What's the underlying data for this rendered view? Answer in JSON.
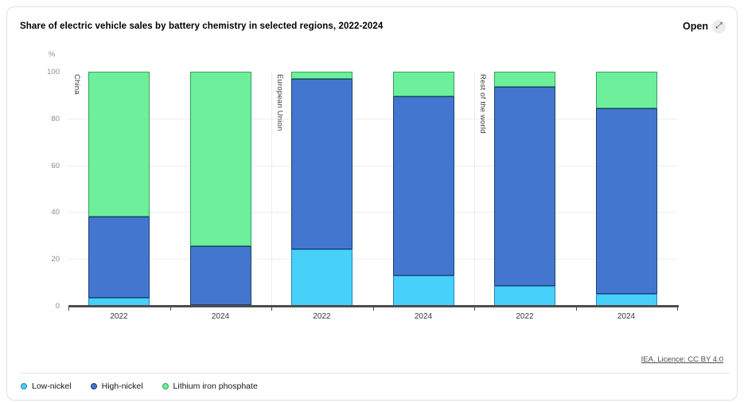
{
  "header": {
    "title": "Share of electric vehicle sales by battery chemistry in selected regions, 2022-2024",
    "open_label": "Open",
    "open_icon": "⤢"
  },
  "chart_data": {
    "type": "bar",
    "stacked": true,
    "title": "Share of electric vehicle sales by battery chemistry in selected regions, 2022-2024",
    "xlabel": "",
    "ylabel": "%",
    "ylim": [
      0,
      100
    ],
    "yticks": [
      0,
      20,
      40,
      60,
      80,
      100
    ],
    "gridline_values": [
      20,
      40,
      60,
      80
    ],
    "grid": true,
    "legend_position": "bottom",
    "regions": [
      "China",
      "European Union",
      "Rest of the world"
    ],
    "categories": [
      "2022",
      "2024",
      "2022",
      "2024",
      "2022",
      "2024"
    ],
    "series": [
      {
        "name": "Low-nickel",
        "color": "#47D1FA",
        "edge": "#2486B8",
        "values": [
          3.5,
          0.5,
          24,
          13,
          8.5,
          5
        ]
      },
      {
        "name": "High-nickel",
        "color": "#4377CF",
        "edge": "#1D3E70",
        "values": [
          34.5,
          25,
          73,
          76.5,
          85,
          79.5
        ]
      },
      {
        "name": "Lithium iron phosphate",
        "color": "#6EEF9B",
        "edge": "#2FA35D",
        "values": [
          62,
          74.5,
          3,
          10.5,
          6.5,
          15.5
        ]
      }
    ]
  },
  "footer": {
    "attribution": "IEA. Licence: CC BY 4.0"
  }
}
